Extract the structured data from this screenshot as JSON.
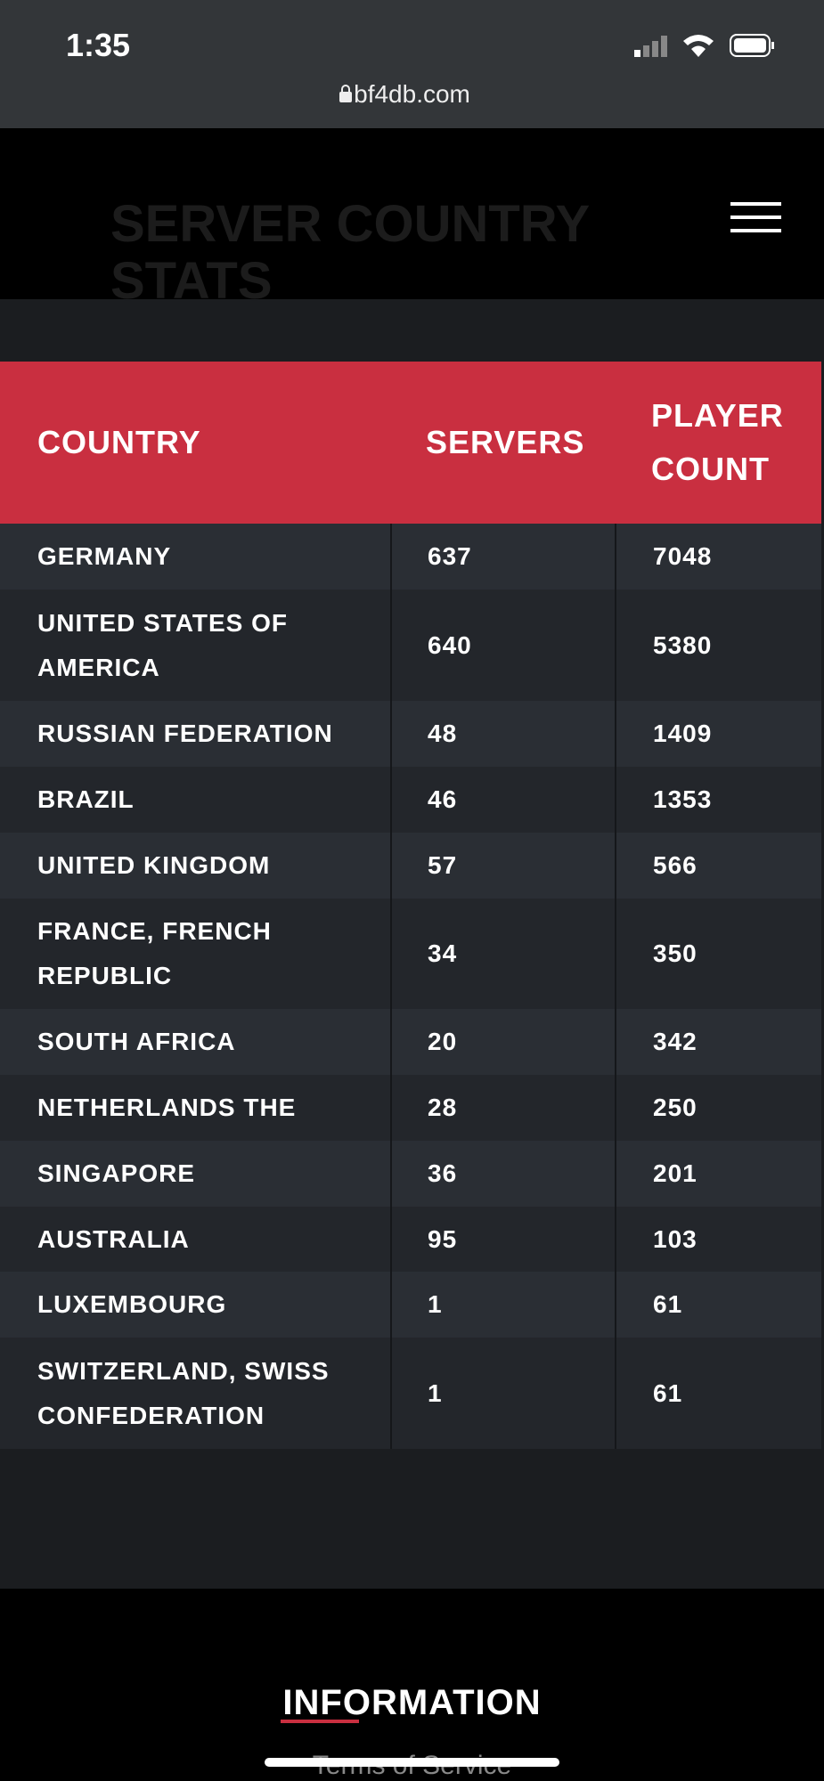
{
  "status": {
    "time": "1:35",
    "url": "bf4db.com"
  },
  "header": {
    "title": "SERVER COUNTRY STATS"
  },
  "table": {
    "columns": [
      "COUNTRY",
      "SERVERS",
      "PLAYER COUNT"
    ],
    "rows": [
      [
        "GERMANY",
        637,
        7048
      ],
      [
        "UNITED STATES OF AMERICA",
        640,
        5380
      ],
      [
        "RUSSIAN FEDERATION",
        48,
        1409
      ],
      [
        "BRAZIL",
        46,
        1353
      ],
      [
        "UNITED KINGDOM",
        57,
        566
      ],
      [
        "FRANCE, FRENCH REPUBLIC",
        34,
        350
      ],
      [
        "SOUTH AFRICA",
        20,
        342
      ],
      [
        "NETHERLANDS THE",
        28,
        250
      ],
      [
        "SINGAPORE",
        36,
        201
      ],
      [
        "AUSTRALIA",
        95,
        103
      ],
      [
        "LUXEMBOURG",
        1,
        61
      ],
      [
        "SWITZERLAND, SWISS CONFEDERATION",
        1,
        61
      ]
    ]
  },
  "footer": {
    "heading": "INFORMATION",
    "link": "Terms of Service"
  }
}
